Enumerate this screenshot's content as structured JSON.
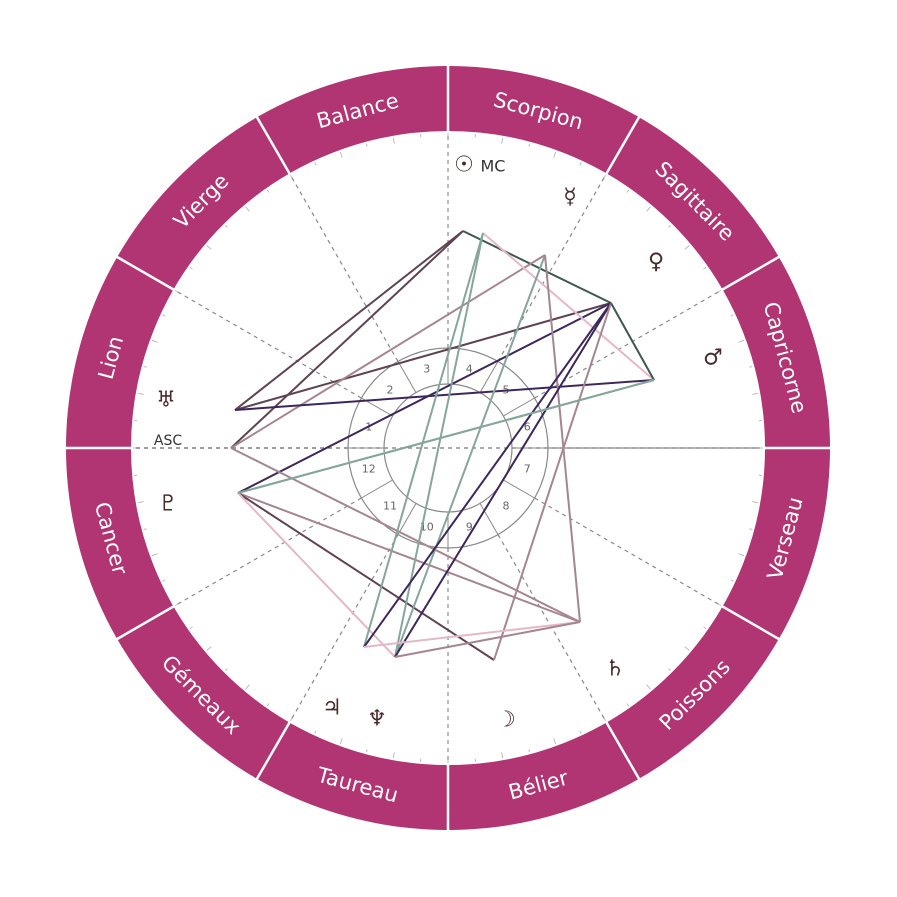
{
  "signs": [
    "Bélier",
    "Taureau",
    "Gémeaux",
    "Cancer",
    "Lion",
    "Vierge",
    "Balance",
    "Scorpion",
    "Sagittaire",
    "Capricorne",
    "Verseau",
    "Poissons"
  ],
  "colors": {
    "ring": "#b03572",
    "ring_border": "#ffffff",
    "glyph": "#4a2b2b",
    "aspect_palette": [
      "#5e4352",
      "#a58590",
      "#e4b8c8",
      "#3d275a",
      "#86a59c",
      "#3e5750"
    ]
  },
  "angles": {
    "asc": "ASC",
    "mc": "MC"
  },
  "houses": [
    "1",
    "2",
    "3",
    "4",
    "5",
    "6",
    "7",
    "8",
    "9",
    "10",
    "11",
    "12"
  ],
  "planets": [
    {
      "id": "sun",
      "glyph": "☉",
      "name": "sun-icon"
    },
    {
      "id": "mercury",
      "glyph": "☿",
      "name": "mercury-icon"
    },
    {
      "id": "venus",
      "glyph": "♀",
      "name": "venus-icon"
    },
    {
      "id": "mars",
      "glyph": "♂",
      "name": "mars-icon"
    },
    {
      "id": "saturn",
      "glyph": "♄",
      "name": "saturn-icon"
    },
    {
      "id": "moon",
      "glyph": "☽",
      "name": "moon-icon"
    },
    {
      "id": "neptune",
      "glyph": "♆",
      "name": "neptune-icon"
    },
    {
      "id": "jupiter",
      "glyph": "♃",
      "name": "jupiter-icon"
    },
    {
      "id": "pluto",
      "glyph": "♇",
      "name": "pluto-icon"
    },
    {
      "id": "uranus",
      "glyph": "♅",
      "name": "uranus-icon"
    }
  ]
}
